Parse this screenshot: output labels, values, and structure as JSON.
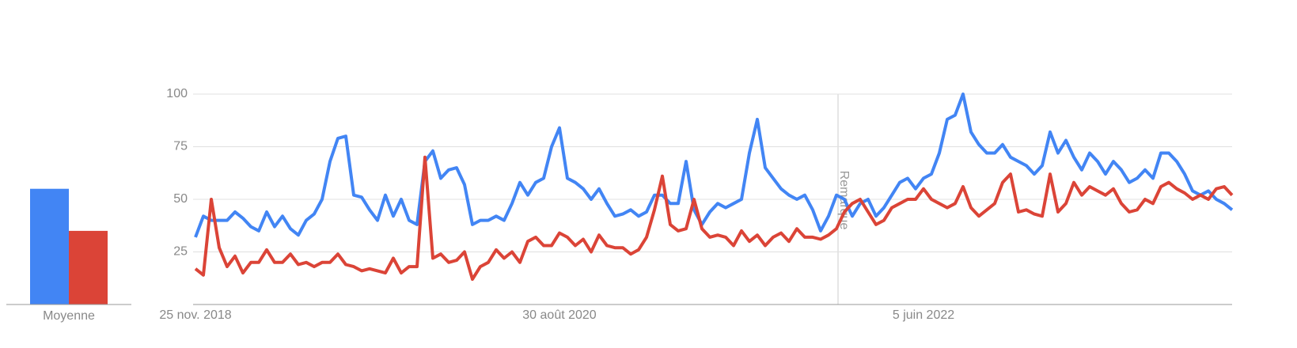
{
  "chart_data": [
    {
      "type": "line",
      "annotation": "Remarque",
      "categories": [
        "25 nov. 2018",
        null,
        null,
        null,
        null,
        null,
        null,
        null,
        null,
        null,
        null,
        null,
        null,
        null,
        null,
        null,
        null,
        null,
        null,
        null,
        null,
        null,
        null,
        null,
        null,
        null,
        null,
        null,
        null,
        null,
        null,
        null,
        null,
        null,
        null,
        null,
        null,
        null,
        null,
        null,
        null,
        null,
        null,
        null,
        null,
        null,
        "30 août 2020",
        null,
        null,
        null,
        null,
        null,
        null,
        null,
        null,
        null,
        null,
        null,
        null,
        null,
        null,
        null,
        null,
        null,
        null,
        null,
        null,
        null,
        null,
        null,
        null,
        null,
        null,
        null,
        null,
        null,
        null,
        null,
        null,
        null,
        null,
        null,
        null,
        null,
        null,
        null,
        null,
        null,
        null,
        null,
        null,
        null,
        "5 juin 2022",
        null,
        null,
        null,
        null,
        null,
        null,
        null,
        null,
        null,
        null,
        null,
        null,
        null,
        null,
        null,
        null,
        null,
        null,
        null,
        null,
        null,
        null,
        null,
        null,
        null,
        null,
        null,
        null,
        null,
        null,
        null,
        null,
        null,
        null,
        null,
        null,
        null,
        null,
        null
      ],
      "series": [
        {
          "color": "#4285f4",
          "values": [
            32,
            42,
            40,
            40,
            40,
            44,
            41,
            37,
            35,
            44,
            37,
            42,
            36,
            33,
            40,
            43,
            50,
            68,
            79,
            80,
            52,
            51,
            45,
            40,
            52,
            42,
            50,
            40,
            38,
            68,
            73,
            60,
            64,
            65,
            57,
            38,
            40,
            40,
            42,
            40,
            48,
            58,
            52,
            58,
            60,
            75,
            84,
            60,
            58,
            55,
            50,
            55,
            48,
            42,
            43,
            45,
            42,
            44,
            52,
            52,
            48,
            48,
            68,
            45,
            38,
            44,
            48,
            46,
            48,
            50,
            72,
            88,
            65,
            60,
            55,
            52,
            50,
            52,
            45,
            35,
            42,
            52,
            50,
            42,
            48,
            50,
            42,
            46,
            52,
            58,
            60,
            55,
            60,
            62,
            72,
            88,
            90,
            100,
            82,
            76,
            72,
            72,
            76,
            70,
            68,
            66,
            62,
            66,
            82,
            72,
            78,
            70,
            64,
            72,
            68,
            62,
            68,
            64,
            58,
            60,
            64,
            60,
            72,
            72,
            68,
            62,
            54,
            52,
            54,
            50,
            48,
            45
          ]
        },
        {
          "color": "#db4437",
          "values": [
            17,
            14,
            50,
            27,
            18,
            23,
            15,
            20,
            20,
            26,
            20,
            20,
            24,
            19,
            20,
            18,
            20,
            20,
            24,
            19,
            18,
            16,
            17,
            16,
            15,
            22,
            15,
            18,
            18,
            70,
            22,
            24,
            20,
            21,
            25,
            12,
            18,
            20,
            26,
            22,
            25,
            20,
            30,
            32,
            28,
            28,
            34,
            32,
            28,
            31,
            25,
            33,
            28,
            27,
            27,
            24,
            26,
            32,
            45,
            61,
            38,
            35,
            36,
            50,
            36,
            32,
            33,
            32,
            28,
            35,
            30,
            33,
            28,
            32,
            34,
            30,
            36,
            32,
            32,
            31,
            33,
            36,
            44,
            48,
            50,
            44,
            38,
            40,
            46,
            48,
            50,
            50,
            55,
            50,
            48,
            46,
            48,
            56,
            46,
            42,
            45,
            48,
            58,
            62,
            44,
            45,
            43,
            42,
            62,
            44,
            48,
            58,
            52,
            56,
            54,
            52,
            55,
            48,
            44,
            45,
            50,
            48,
            56,
            58,
            55,
            53,
            50,
            52,
            50,
            55,
            56,
            52
          ]
        }
      ],
      "ylim": [
        0,
        100
      ],
      "yticks": [
        25,
        50,
        75,
        100
      ],
      "grid": true
    },
    {
      "type": "bar",
      "categories": [
        "Moyenne"
      ],
      "series": [
        {
          "color": "#4285f4",
          "values": [
            55
          ]
        },
        {
          "color": "#db4437",
          "values": [
            35
          ]
        }
      ],
      "ylim": [
        0,
        100
      ]
    }
  ]
}
